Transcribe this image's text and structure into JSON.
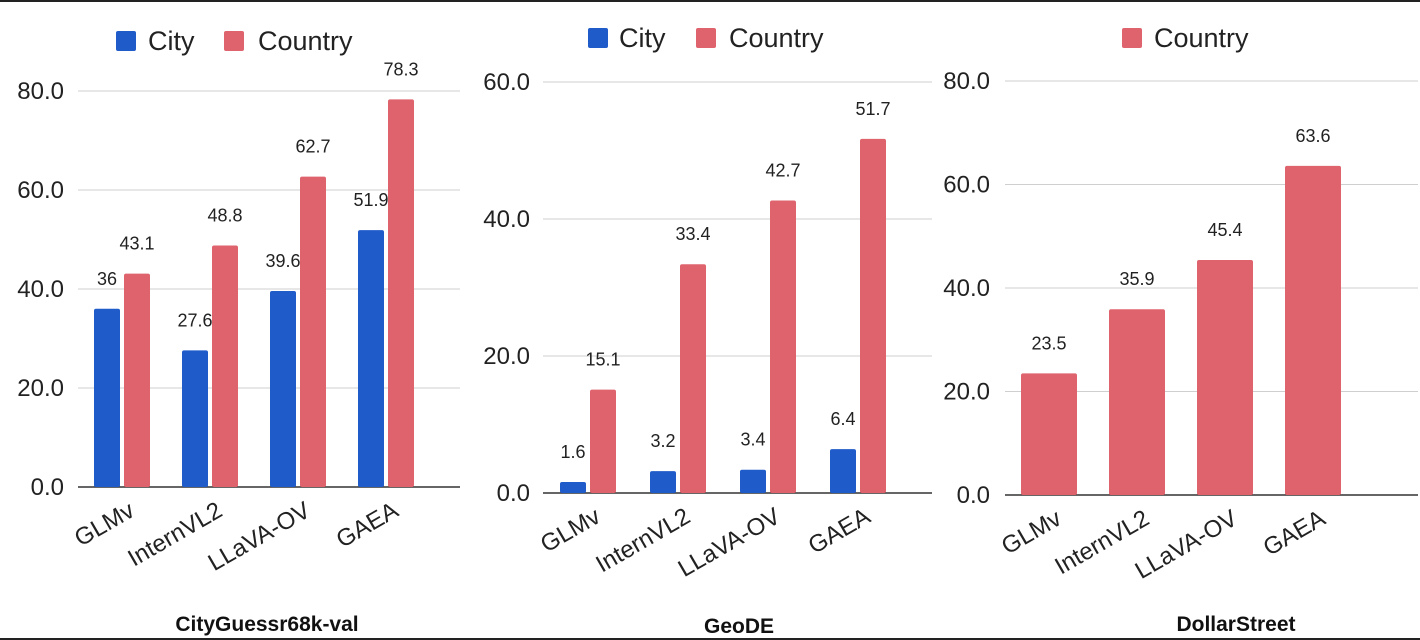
{
  "colors": {
    "city": "#1f5bc9",
    "country": "#df636d",
    "grid": "#cfcfcf",
    "axis": "#333333",
    "text": "#222222"
  },
  "chart_data": [
    {
      "type": "bar",
      "title": "CityGuessr68k-val",
      "categories": [
        "GLMv",
        "InternVL2",
        "LLaVA-OV",
        "GAEA"
      ],
      "series": [
        {
          "name": "City",
          "color_key": "city",
          "values": [
            36.0,
            27.6,
            39.6,
            51.9
          ]
        },
        {
          "name": "Country",
          "color_key": "country",
          "values": [
            43.1,
            48.8,
            62.7,
            78.3
          ]
        }
      ],
      "ylim": [
        0,
        80
      ],
      "yticks": [
        0,
        20,
        40,
        60,
        80
      ],
      "ytick_labels": [
        "0.0",
        "20.0",
        "40.0",
        "60.0",
        "80.0"
      ],
      "grid": true,
      "legend": "top"
    },
    {
      "type": "bar",
      "title": "GeoDE",
      "categories": [
        "GLMv",
        "InternVL2",
        "LLaVA-OV",
        "GAEA"
      ],
      "series": [
        {
          "name": "City",
          "color_key": "city",
          "values": [
            1.6,
            3.2,
            3.4,
            6.4
          ]
        },
        {
          "name": "Country",
          "color_key": "country",
          "values": [
            15.1,
            33.4,
            42.7,
            51.7
          ]
        }
      ],
      "ylim": [
        0,
        60
      ],
      "yticks": [
        0,
        20,
        40,
        60
      ],
      "ytick_labels": [
        "0.0",
        "20.0",
        "40.0",
        "60.0"
      ],
      "grid": true,
      "legend": "top"
    },
    {
      "type": "bar",
      "title": "DollarStreet",
      "categories": [
        "GLMv",
        "InternVL2",
        "LLaVA-OV",
        "GAEA"
      ],
      "series": [
        {
          "name": "Country",
          "color_key": "country",
          "values": [
            23.5,
            35.9,
            45.4,
            63.6
          ]
        }
      ],
      "ylim": [
        0,
        80
      ],
      "yticks": [
        0,
        20,
        40,
        60,
        80
      ],
      "ytick_labels": [
        "0.0",
        "20.0",
        "40.0",
        "60.0",
        "80.0"
      ],
      "grid": true,
      "legend": "top"
    }
  ]
}
